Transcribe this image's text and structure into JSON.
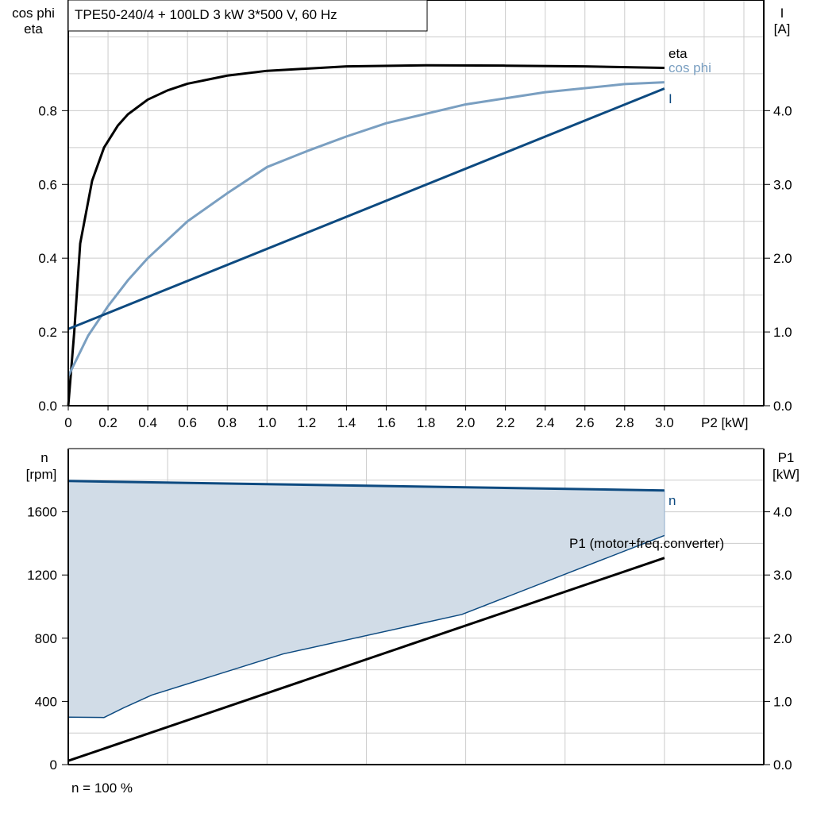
{
  "title": "TPE50-240/4 + 100LD   3 kW   3*500 V, 60 Hz",
  "footer_note": "n = 100 %",
  "colors": {
    "eta": "#000000",
    "cos_phi": "#7a9fc1",
    "current": "#0d4a80",
    "speed": "#0d4a80",
    "fill": "#d1dce7",
    "p1": "#000000",
    "grid": "#cccccc"
  },
  "chart_data": [
    {
      "type": "line",
      "xlabel": "P2 [kW]",
      "ylabel_left": [
        "cos phi",
        "eta"
      ],
      "ylabel_right": [
        "I",
        "[A]"
      ],
      "xlim": [
        0,
        3.5
      ],
      "ylim_left": [
        0,
        1.1
      ],
      "ylim_right": [
        0,
        5.5
      ],
      "x_ticks": [
        "0",
        "0.2",
        "0.4",
        "0.6",
        "0.8",
        "1.0",
        "1.2",
        "1.4",
        "1.6",
        "1.8",
        "2.0",
        "2.2",
        "2.4",
        "2.6",
        "2.8",
        "3.0"
      ],
      "y_ticks_left": [
        "0.0",
        "0.2",
        "0.4",
        "0.6",
        "0.8"
      ],
      "y_ticks_right": [
        "0.0",
        "1.0",
        "2.0",
        "3.0",
        "4.0"
      ],
      "grid": true,
      "series": [
        {
          "name": "eta",
          "axis": "left",
          "x": [
            0,
            0.03,
            0.06,
            0.12,
            0.18,
            0.25,
            0.3,
            0.4,
            0.5,
            0.6,
            0.8,
            1.0,
            1.4,
            1.8,
            2.2,
            2.6,
            3.0
          ],
          "y": [
            0,
            0.2,
            0.44,
            0.61,
            0.7,
            0.76,
            0.79,
            0.83,
            0.855,
            0.873,
            0.895,
            0.908,
            0.92,
            0.923,
            0.922,
            0.92,
            0.916
          ]
        },
        {
          "name": "cos phi",
          "axis": "left",
          "x": [
            0,
            0.1,
            0.2,
            0.3,
            0.4,
            0.6,
            0.8,
            1.0,
            1.2,
            1.4,
            1.6,
            2.0,
            2.4,
            2.8,
            3.0
          ],
          "y": [
            0.08,
            0.19,
            0.27,
            0.34,
            0.4,
            0.5,
            0.576,
            0.647,
            0.69,
            0.73,
            0.766,
            0.817,
            0.85,
            0.872,
            0.877
          ]
        },
        {
          "name": "I",
          "axis": "right",
          "x": [
            0,
            3.0
          ],
          "y": [
            1.04,
            4.3
          ]
        }
      ]
    },
    {
      "type": "area",
      "xlim": [
        0,
        3.5
      ],
      "ylabel_left": [
        "n",
        "[rpm]"
      ],
      "ylabel_right": [
        "P1",
        "[kW]"
      ],
      "ylim_left": [
        0,
        2000
      ],
      "ylim_right": [
        0,
        5.0
      ],
      "y_ticks_left": [
        "0",
        "400",
        "800",
        "1200",
        "1600"
      ],
      "y_ticks_right": [
        "0.0",
        "1.0",
        "2.0",
        "3.0",
        "4.0"
      ],
      "grid": true,
      "series": [
        {
          "name": "n",
          "axis": "left",
          "x": [
            0,
            3.0
          ],
          "y": [
            1795,
            1735
          ]
        },
        {
          "axis": "left",
          "x": [
            0,
            0.18,
            0.28,
            0.42,
            1.08,
            1.98,
            3.0
          ],
          "y": [
            300,
            298,
            360,
            440,
            700,
            950,
            1450
          ]
        },
        {
          "name": "P1 (motor+freq.converter)",
          "axis": "right",
          "x": [
            0,
            3.0
          ],
          "y": [
            0.06,
            3.27
          ]
        }
      ]
    }
  ]
}
